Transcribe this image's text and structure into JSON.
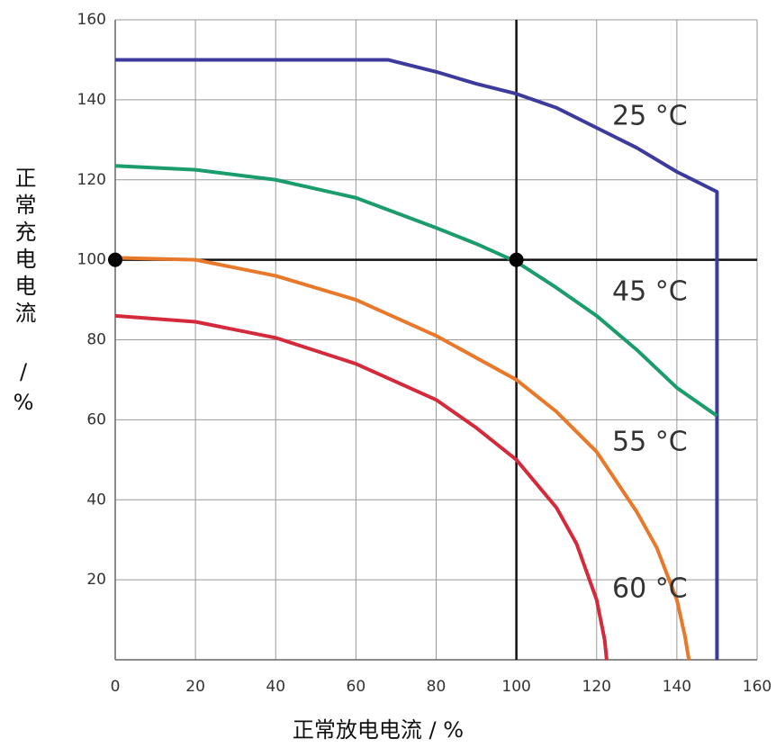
{
  "chart_data": {
    "type": "line",
    "x_label": "正常放电电流 / %",
    "y_label": "正常充电电流 /%",
    "xlim": [
      0,
      160
    ],
    "ylim": [
      0,
      160
    ],
    "xticks": [
      0,
      20,
      40,
      60,
      80,
      100,
      120,
      140,
      160
    ],
    "yticks": [
      20,
      40,
      60,
      80,
      100,
      120,
      140,
      160
    ],
    "grid": true,
    "reference_lines": {
      "x": 100,
      "y": 100
    },
    "markers": {
      "x": [
        0,
        100
      ],
      "y": [
        100,
        100
      ]
    },
    "series": [
      {
        "name": "25 °C",
        "color": "#3d3a9e",
        "x": [
          0,
          68,
          80,
          90,
          100,
          110,
          120,
          130,
          140,
          148,
          150,
          150
        ],
        "values": [
          150,
          150,
          147,
          144,
          141.5,
          138,
          133,
          128,
          122,
          118,
          117,
          0
        ]
      },
      {
        "name": "45 °C",
        "color": "#1a9c6b",
        "x": [
          0,
          20,
          40,
          60,
          80,
          90,
          100,
          110,
          120,
          130,
          140,
          150
        ],
        "values": [
          123.5,
          122.5,
          120,
          115.5,
          108,
          104,
          99.5,
          93,
          86,
          77.5,
          68,
          61
        ]
      },
      {
        "name": "55 °C",
        "color": "#e8782a",
        "x": [
          0,
          20,
          40,
          60,
          80,
          100,
          110,
          120,
          130,
          135,
          140,
          142,
          143
        ],
        "values": [
          100.5,
          100,
          96,
          90,
          81,
          70,
          62,
          52,
          37,
          28,
          15,
          6,
          0
        ]
      },
      {
        "name": "60 °C",
        "color": "#d42a3b",
        "x": [
          0,
          20,
          40,
          60,
          80,
          90,
          100,
          110,
          115,
          120,
          122,
          122.5
        ],
        "values": [
          86,
          84.5,
          80.5,
          74,
          65,
          58,
          50,
          38,
          29,
          15,
          5,
          0
        ]
      }
    ]
  }
}
